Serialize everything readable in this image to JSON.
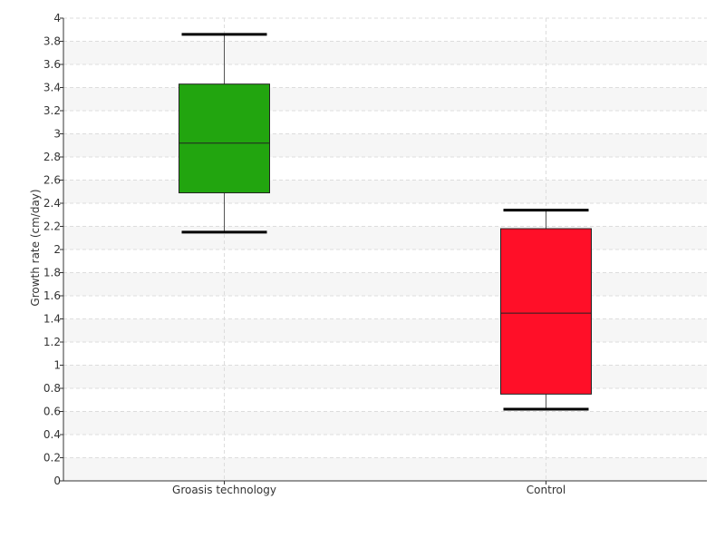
{
  "chart_data": {
    "type": "box",
    "ylabel": "Growth rate (cm/day)",
    "xlabel": "",
    "ylim": [
      0,
      4
    ],
    "yticks": [
      "0",
      "0.2",
      "0.4",
      "0.6",
      "0.8",
      "1",
      "1.2",
      "1.4",
      "1.6",
      "1.8",
      "2",
      "2.2",
      "2.4",
      "2.6",
      "2.8",
      "3",
      "3.2",
      "3.4",
      "3.6",
      "3.8",
      "4"
    ],
    "categories": [
      "Groasis technology",
      "Control"
    ],
    "boxes": [
      {
        "category": "Groasis technology",
        "whisker_low": 2.15,
        "q1": 2.49,
        "median": 2.92,
        "q3": 3.43,
        "whisker_high": 3.86,
        "color": "#22a50f"
      },
      {
        "category": "Control",
        "whisker_low": 0.62,
        "q1": 0.75,
        "median": 1.45,
        "q3": 2.18,
        "whisker_high": 2.34,
        "color": "#ff0f28"
      }
    ],
    "grid": true,
    "band_color": "#f6f6f6",
    "gridline_color": "#dddddd"
  }
}
